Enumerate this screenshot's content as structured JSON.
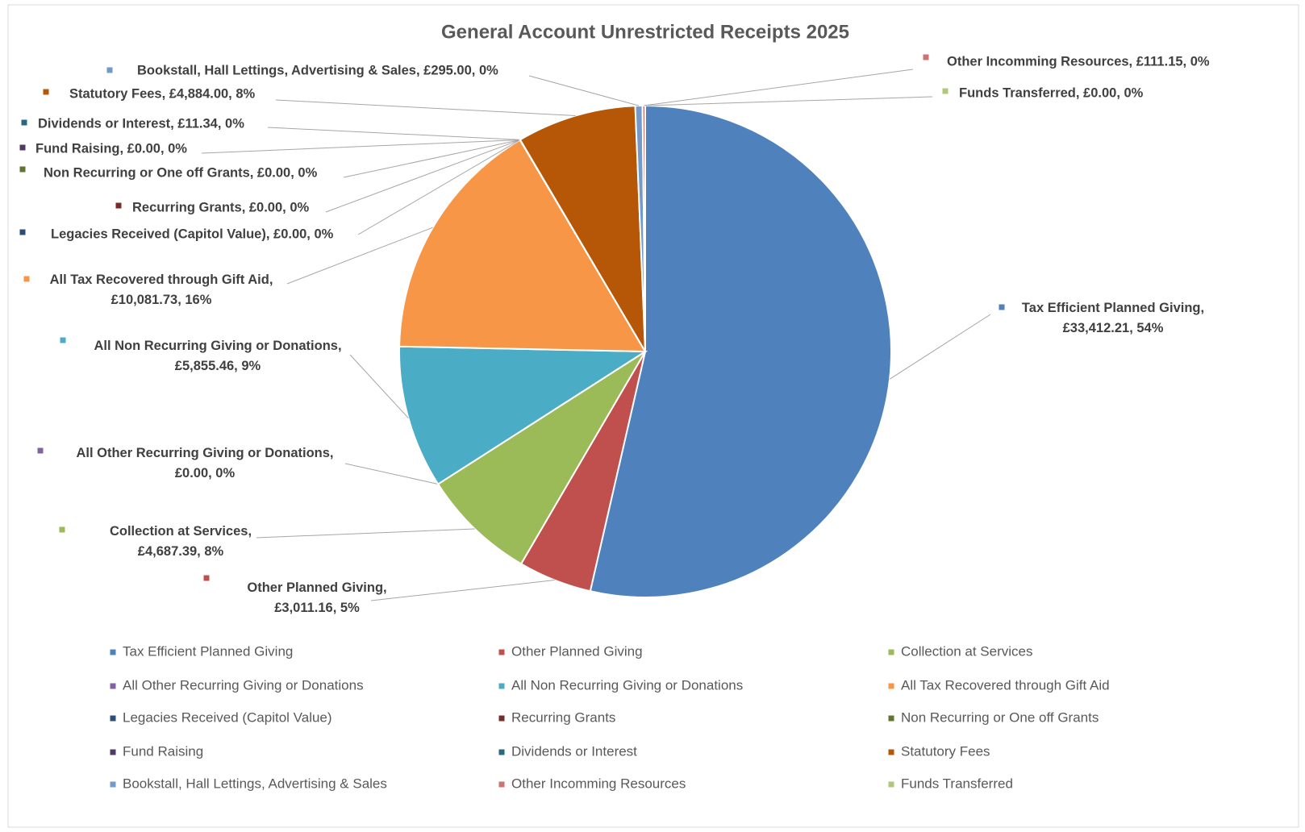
{
  "chart_data": {
    "type": "pie",
    "title": "General Account Unrestricted Receipts 2025",
    "categories": [
      "Tax Efficient Planned Giving",
      "Other Planned Giving",
      "Collection at Services",
      "All Other Recurring Giving or Donations",
      "All Non Recurring Giving or Donations",
      "All Tax Recovered through Gift Aid",
      "Legacies Received (Capitol Value)",
      "Recurring Grants",
      "Non Recurring or One off Grants",
      "Fund Raising",
      "Dividends or Interest",
      "Statutory Fees",
      "Bookstall, Hall Lettings, Advertising & Sales",
      "Other Incomming Resources",
      "Funds Transferred"
    ],
    "values": [
      33412.21,
      3011.16,
      4687.39,
      0,
      5855.46,
      10081.73,
      0,
      0,
      0,
      0,
      11.34,
      4884.0,
      295.0,
      111.15,
      0
    ],
    "value_labels": [
      "Tax Efficient Planned Giving, £33,412.21, 54%",
      "Other Planned Giving, £3,011.16, 5%",
      "Collection at Services, £4,687.39, 8%",
      "All Other Recurring Giving or Donations, £0.00, 0%",
      "All Non Recurring Giving or Donations, £5,855.46, 9%",
      "All Tax Recovered through Gift Aid, £10,081.73, 16%",
      "Legacies Received (Capitol Value), £0.00, 0%",
      "Recurring Grants, £0.00, 0%",
      "Non Recurring or One off Grants, £0.00, 0%",
      "Fund Raising, £0.00, 0%",
      "Dividends or Interest, £11.34, 0%",
      "Statutory Fees, £4,884.00, 8%",
      "Bookstall, Hall Lettings, Advertising & Sales, £295.00, 0%",
      "Other Incomming Resources, £111.15, 0%",
      "Funds Transferred, £0.00, 0%"
    ],
    "colors": [
      "#4f81bd",
      "#c0504d",
      "#9bbb59",
      "#8064a2",
      "#4bacc6",
      "#f79646",
      "#2c4d75",
      "#772c2a",
      "#5f7530",
      "#4d3b62",
      "#276a7c",
      "#b65708",
      "#729aca",
      "#cd7371",
      "#afc97a"
    ],
    "legend": "bottom"
  }
}
